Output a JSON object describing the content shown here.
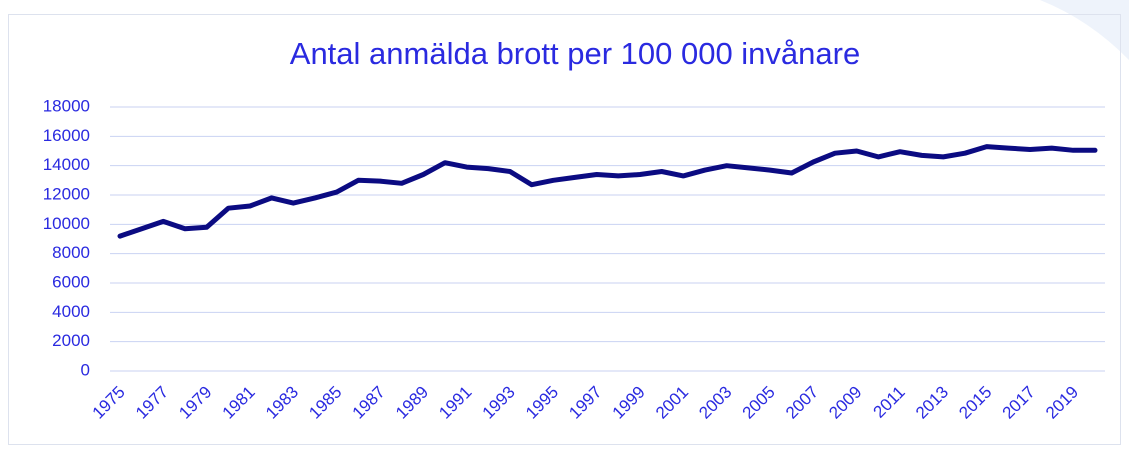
{
  "chart_data": {
    "type": "line",
    "title": "Antal anmälda brott per 100 000 invånare",
    "categories": [
      "1975",
      null,
      "1977",
      null,
      "1979",
      null,
      "1981",
      null,
      "1983",
      null,
      "1985",
      null,
      "1987",
      null,
      "1989",
      null,
      "1991",
      null,
      "1993",
      null,
      "1995",
      null,
      "1997",
      null,
      "1999",
      null,
      "2001",
      null,
      "2003",
      null,
      "2005",
      null,
      "2007",
      null,
      "2009",
      null,
      "2011",
      null,
      "2013",
      null,
      "2015",
      null,
      "2017",
      null,
      "2019",
      null
    ],
    "values": [
      9200,
      9700,
      10200,
      9700,
      9800,
      11100,
      11250,
      11800,
      11450,
      11800,
      12200,
      13000,
      12950,
      12800,
      13400,
      14200,
      13900,
      13800,
      13600,
      12700,
      13000,
      13200,
      13400,
      13300,
      13400,
      13600,
      13300,
      13700,
      14000,
      13850,
      13700,
      13500,
      14250,
      14850,
      15000,
      14600,
      14950,
      14700,
      14600,
      14850,
      15300,
      15200,
      15100,
      15200,
      15050,
      15050
    ],
    "color": "#0b0b82",
    "ylim": [
      0,
      18000
    ],
    "yticks": [
      0,
      2000,
      4000,
      6000,
      8000,
      10000,
      12000,
      14000,
      16000,
      18000
    ],
    "grid": true
  }
}
